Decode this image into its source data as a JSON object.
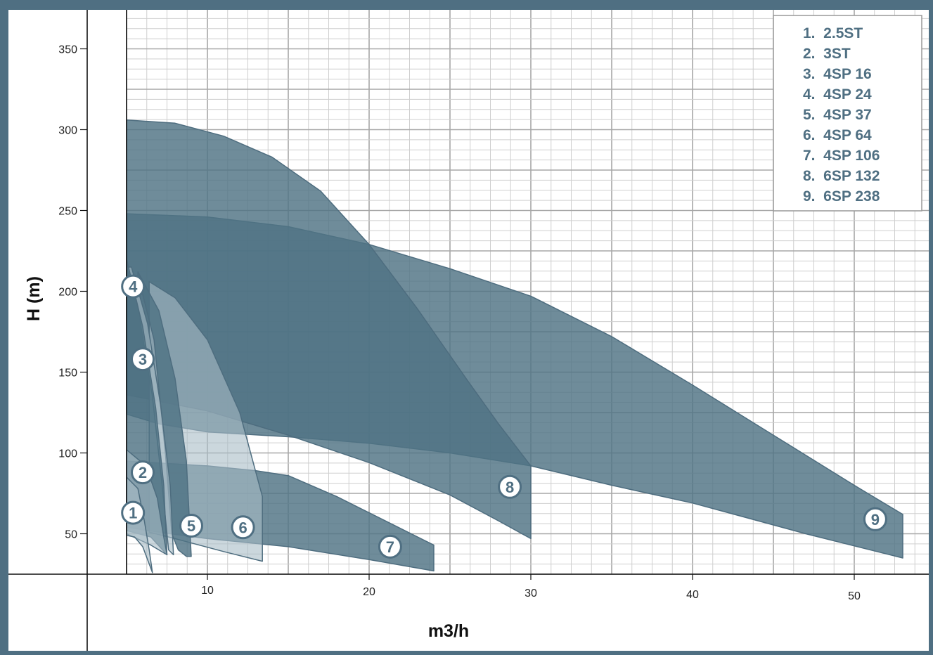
{
  "colors": {
    "frame": "#4f6f82",
    "region_dark": "#4f7384",
    "region_light": "#a9bcc7",
    "label": "#4f6f82",
    "grid_major": "#a7a7a7",
    "grid_minor": "#cfcfcf"
  },
  "chart_data": {
    "type": "area",
    "xlabel": "m3/h",
    "ylabel": "H (m)",
    "xlim": [
      0,
      53
    ],
    "ylim": [
      25,
      372
    ],
    "x_ticks": [
      10,
      20,
      30,
      40,
      50
    ],
    "y_ticks": [
      50,
      100,
      150,
      200,
      250,
      300,
      350
    ],
    "grid": true,
    "legend_position": "top-right",
    "legend": [
      "1.  2.5ST",
      "2.  3ST",
      "3.  4SP 16",
      "4.  4SP 24",
      "5.  4SP 37",
      "6.  4SP 64",
      "7.  4SP 106",
      "8.  6SP 132",
      "9.  6SP 238"
    ],
    "series": [
      {
        "name": "6SP 238",
        "label": "9",
        "tone": "dark",
        "label_pos": [
          51.3,
          59
        ],
        "points": [
          [
            5,
            248
          ],
          [
            10,
            246
          ],
          [
            15,
            240
          ],
          [
            20,
            229
          ],
          [
            25,
            214
          ],
          [
            30,
            197
          ],
          [
            35,
            172
          ],
          [
            40,
            142
          ],
          [
            45,
            111
          ],
          [
            50,
            80
          ],
          [
            53,
            62
          ],
          [
            53,
            35
          ],
          [
            47,
            50
          ],
          [
            40,
            69
          ],
          [
            35,
            80
          ],
          [
            30,
            92
          ],
          [
            25,
            100
          ],
          [
            20,
            106
          ],
          [
            15,
            110
          ],
          [
            10,
            113
          ],
          [
            7,
            118
          ],
          [
            5,
            124
          ]
        ]
      },
      {
        "name": "6SP 132",
        "label": "8",
        "tone": "dark",
        "label_pos": [
          28.7,
          79
        ],
        "points": [
          [
            5,
            306
          ],
          [
            8,
            304
          ],
          [
            11,
            296
          ],
          [
            14,
            283
          ],
          [
            17,
            262
          ],
          [
            20,
            229
          ],
          [
            23,
            189
          ],
          [
            26,
            146
          ],
          [
            28,
            118
          ],
          [
            30,
            92
          ],
          [
            30,
            47
          ],
          [
            28,
            58
          ],
          [
            25,
            74
          ],
          [
            20,
            94
          ],
          [
            15,
            111
          ],
          [
            10,
            126
          ],
          [
            7,
            132
          ],
          [
            5,
            136
          ]
        ]
      },
      {
        "name": "4SP 106",
        "label": "7",
        "tone": "dark",
        "label_pos": [
          21.3,
          42
        ],
        "points": [
          [
            5,
            95
          ],
          [
            10,
            92
          ],
          [
            13,
            89
          ],
          [
            15,
            86
          ],
          [
            18,
            73
          ],
          [
            21,
            58
          ],
          [
            24,
            43
          ],
          [
            24,
            27
          ],
          [
            20,
            34
          ],
          [
            15,
            42
          ],
          [
            10,
            47
          ],
          [
            7,
            51
          ],
          [
            5,
            54
          ]
        ]
      },
      {
        "name": "4SP 64",
        "label": "6",
        "tone": "light",
        "label_pos": [
          12.2,
          54
        ],
        "points": [
          [
            6.4,
            206
          ],
          [
            8,
            196
          ],
          [
            10,
            170
          ],
          [
            12,
            125
          ],
          [
            13.4,
            73
          ],
          [
            13.4,
            33
          ],
          [
            11,
            39
          ],
          [
            8,
            47
          ],
          [
            6.4,
            51
          ]
        ]
      },
      {
        "name": "4SP 37",
        "label": "5",
        "tone": "dark",
        "label_pos": [
          9.0,
          55
        ],
        "points": [
          [
            5.7,
            212
          ],
          [
            7,
            188
          ],
          [
            8,
            146
          ],
          [
            8.7,
            95
          ],
          [
            9.0,
            36
          ],
          [
            8.7,
            36
          ],
          [
            8.2,
            40
          ],
          [
            7.8,
            50
          ],
          [
            7.4,
            100
          ],
          [
            6.7,
            170
          ],
          [
            5.7,
            210
          ]
        ]
      },
      {
        "name": "4SP 24",
        "label": "4",
        "tone": "light",
        "label_pos": [
          5.4,
          203
        ],
        "points": [
          [
            5.3,
            215
          ],
          [
            6.3,
            180
          ],
          [
            7.1,
            130
          ],
          [
            7.7,
            80
          ],
          [
            7.9,
            37
          ],
          [
            7.6,
            40
          ],
          [
            7.2,
            80
          ],
          [
            6.6,
            135
          ],
          [
            5.7,
            190
          ],
          [
            5.0,
            215
          ]
        ]
      },
      {
        "name": "4SP 16",
        "label": "3",
        "tone": "dark",
        "label_pos": [
          6.0,
          158
        ],
        "points": [
          [
            5,
            220
          ],
          [
            6,
            178
          ],
          [
            6.8,
            128
          ],
          [
            7.3,
            80
          ],
          [
            7.5,
            37
          ],
          [
            6.5,
            48
          ],
          [
            5,
            52
          ]
        ]
      },
      {
        "name": "3ST",
        "label": "2",
        "tone": "light",
        "label_pos": [
          6.0,
          88
        ],
        "points": [
          [
            5,
            102
          ],
          [
            6.2,
            92
          ],
          [
            6.9,
            72
          ],
          [
            7.3,
            48
          ],
          [
            7.5,
            37
          ],
          [
            6.5,
            43
          ],
          [
            5,
            50
          ]
        ]
      },
      {
        "name": "2.5ST",
        "label": "1",
        "tone": "light",
        "label_pos": [
          5.4,
          63
        ],
        "points": [
          [
            5,
            85
          ],
          [
            5.7,
            78
          ],
          [
            6.1,
            58
          ],
          [
            6.4,
            40
          ],
          [
            6.6,
            26
          ],
          [
            6.0,
            42
          ],
          [
            5.5,
            48
          ],
          [
            5,
            49
          ]
        ]
      }
    ]
  }
}
